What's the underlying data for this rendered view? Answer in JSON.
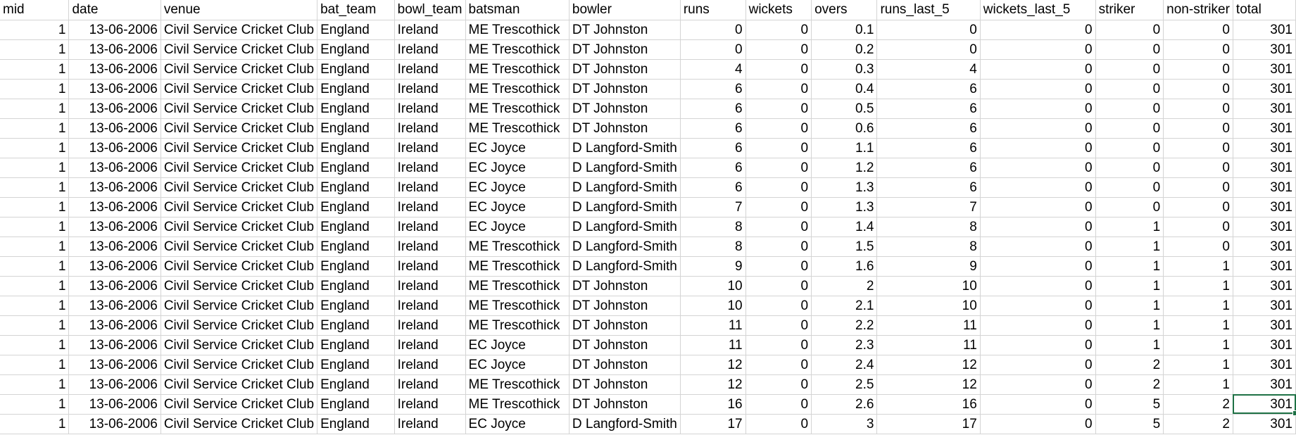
{
  "sheet": {
    "columns": [
      "mid",
      "date",
      "venue",
      "bat_team",
      "bowl_team",
      "batsman",
      "bowler",
      "runs",
      "wickets",
      "overs",
      "runs_last_5",
      "wickets_last_5",
      "striker",
      "non-striker",
      "total"
    ],
    "numeric_columns": [
      0,
      1,
      7,
      8,
      9,
      10,
      11,
      12,
      13,
      14
    ],
    "active_cell": {
      "row": 19,
      "col": 14
    },
    "accent_color": "#1e7145",
    "rows": [
      [
        "1",
        "13-06-2006",
        "Civil Service Cricket Club",
        "England",
        "Ireland",
        "ME Trescothick",
        "DT Johnston",
        "0",
        "0",
        "0.1",
        "0",
        "0",
        "0",
        "0",
        "301"
      ],
      [
        "1",
        "13-06-2006",
        "Civil Service Cricket Club",
        "England",
        "Ireland",
        "ME Trescothick",
        "DT Johnston",
        "0",
        "0",
        "0.2",
        "0",
        "0",
        "0",
        "0",
        "301"
      ],
      [
        "1",
        "13-06-2006",
        "Civil Service Cricket Club",
        "England",
        "Ireland",
        "ME Trescothick",
        "DT Johnston",
        "4",
        "0",
        "0.3",
        "4",
        "0",
        "0",
        "0",
        "301"
      ],
      [
        "1",
        "13-06-2006",
        "Civil Service Cricket Club",
        "England",
        "Ireland",
        "ME Trescothick",
        "DT Johnston",
        "6",
        "0",
        "0.4",
        "6",
        "0",
        "0",
        "0",
        "301"
      ],
      [
        "1",
        "13-06-2006",
        "Civil Service Cricket Club",
        "England",
        "Ireland",
        "ME Trescothick",
        "DT Johnston",
        "6",
        "0",
        "0.5",
        "6",
        "0",
        "0",
        "0",
        "301"
      ],
      [
        "1",
        "13-06-2006",
        "Civil Service Cricket Club",
        "England",
        "Ireland",
        "ME Trescothick",
        "DT Johnston",
        "6",
        "0",
        "0.6",
        "6",
        "0",
        "0",
        "0",
        "301"
      ],
      [
        "1",
        "13-06-2006",
        "Civil Service Cricket Club",
        "England",
        "Ireland",
        "EC Joyce",
        "D Langford-Smith",
        "6",
        "0",
        "1.1",
        "6",
        "0",
        "0",
        "0",
        "301"
      ],
      [
        "1",
        "13-06-2006",
        "Civil Service Cricket Club",
        "England",
        "Ireland",
        "EC Joyce",
        "D Langford-Smith",
        "6",
        "0",
        "1.2",
        "6",
        "0",
        "0",
        "0",
        "301"
      ],
      [
        "1",
        "13-06-2006",
        "Civil Service Cricket Club",
        "England",
        "Ireland",
        "EC Joyce",
        "D Langford-Smith",
        "6",
        "0",
        "1.3",
        "6",
        "0",
        "0",
        "0",
        "301"
      ],
      [
        "1",
        "13-06-2006",
        "Civil Service Cricket Club",
        "England",
        "Ireland",
        "EC Joyce",
        "D Langford-Smith",
        "7",
        "0",
        "1.3",
        "7",
        "0",
        "0",
        "0",
        "301"
      ],
      [
        "1",
        "13-06-2006",
        "Civil Service Cricket Club",
        "England",
        "Ireland",
        "EC Joyce",
        "D Langford-Smith",
        "8",
        "0",
        "1.4",
        "8",
        "0",
        "1",
        "0",
        "301"
      ],
      [
        "1",
        "13-06-2006",
        "Civil Service Cricket Club",
        "England",
        "Ireland",
        "ME Trescothick",
        "D Langford-Smith",
        "8",
        "0",
        "1.5",
        "8",
        "0",
        "1",
        "0",
        "301"
      ],
      [
        "1",
        "13-06-2006",
        "Civil Service Cricket Club",
        "England",
        "Ireland",
        "ME Trescothick",
        "D Langford-Smith",
        "9",
        "0",
        "1.6",
        "9",
        "0",
        "1",
        "1",
        "301"
      ],
      [
        "1",
        "13-06-2006",
        "Civil Service Cricket Club",
        "England",
        "Ireland",
        "ME Trescothick",
        "DT Johnston",
        "10",
        "0",
        "2",
        "10",
        "0",
        "1",
        "1",
        "301"
      ],
      [
        "1",
        "13-06-2006",
        "Civil Service Cricket Club",
        "England",
        "Ireland",
        "ME Trescothick",
        "DT Johnston",
        "10",
        "0",
        "2.1",
        "10",
        "0",
        "1",
        "1",
        "301"
      ],
      [
        "1",
        "13-06-2006",
        "Civil Service Cricket Club",
        "England",
        "Ireland",
        "ME Trescothick",
        "DT Johnston",
        "11",
        "0",
        "2.2",
        "11",
        "0",
        "1",
        "1",
        "301"
      ],
      [
        "1",
        "13-06-2006",
        "Civil Service Cricket Club",
        "England",
        "Ireland",
        "EC Joyce",
        "DT Johnston",
        "11",
        "0",
        "2.3",
        "11",
        "0",
        "1",
        "1",
        "301"
      ],
      [
        "1",
        "13-06-2006",
        "Civil Service Cricket Club",
        "England",
        "Ireland",
        "EC Joyce",
        "DT Johnston",
        "12",
        "0",
        "2.4",
        "12",
        "0",
        "2",
        "1",
        "301"
      ],
      [
        "1",
        "13-06-2006",
        "Civil Service Cricket Club",
        "England",
        "Ireland",
        "ME Trescothick",
        "DT Johnston",
        "12",
        "0",
        "2.5",
        "12",
        "0",
        "2",
        "1",
        "301"
      ],
      [
        "1",
        "13-06-2006",
        "Civil Service Cricket Club",
        "England",
        "Ireland",
        "ME Trescothick",
        "DT Johnston",
        "16",
        "0",
        "2.6",
        "16",
        "0",
        "5",
        "2",
        "301"
      ],
      [
        "1",
        "13-06-2006",
        "Civil Service Cricket Club",
        "England",
        "Ireland",
        "EC Joyce",
        "D Langford-Smith",
        "17",
        "0",
        "3",
        "17",
        "0",
        "5",
        "2",
        "301"
      ]
    ]
  }
}
